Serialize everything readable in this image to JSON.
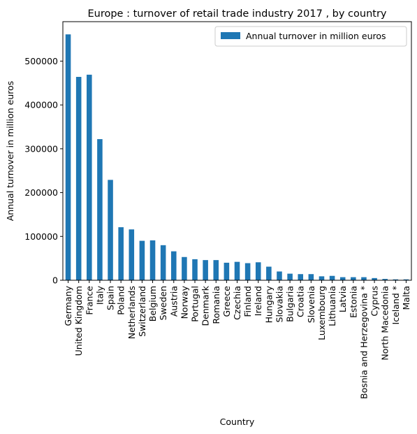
{
  "chart_data": {
    "type": "bar",
    "title": "Europe : turnover of retail trade industry 2017 , by country",
    "xlabel": "Country",
    "ylabel": "Annual turnover in million euros",
    "ylim": [
      0,
      590000
    ],
    "yticks": [
      0,
      100000,
      200000,
      300000,
      400000,
      500000
    ],
    "grid": false,
    "legend_position": "top-right",
    "bar_color": "#1f77b4",
    "categories": [
      "Germany",
      "United Kingdom",
      "France",
      "Italy",
      "Spain",
      "Poland",
      "Netherlands",
      "Switzerland",
      "Belgium",
      "Sweden",
      "Austria",
      "Norway",
      "Portugal",
      "Denmark",
      "Romania",
      "Greece",
      "Czechia",
      "Finland",
      "Ireland",
      "Hungary",
      "Slovakia",
      "Bulgaria",
      "Croatia",
      "Slovenia",
      "Luxembourg",
      "Lithuania",
      "Latvia",
      "Estonia",
      "Bosnia and Herzegovina *",
      "Cyprus",
      "North Macedonia",
      "Iceland *",
      "Malta"
    ],
    "series": [
      {
        "name": "Annual turnover in million euros",
        "values": [
          561000,
          464000,
          469000,
          322000,
          229000,
          121000,
          116000,
          90000,
          91000,
          80000,
          66000,
          53000,
          48000,
          46000,
          46000,
          40000,
          42000,
          39000,
          41000,
          31000,
          20000,
          15000,
          14000,
          14000,
          9000,
          10000,
          7000,
          7000,
          7000,
          5000,
          3000,
          2000,
          2000
        ]
      }
    ]
  }
}
